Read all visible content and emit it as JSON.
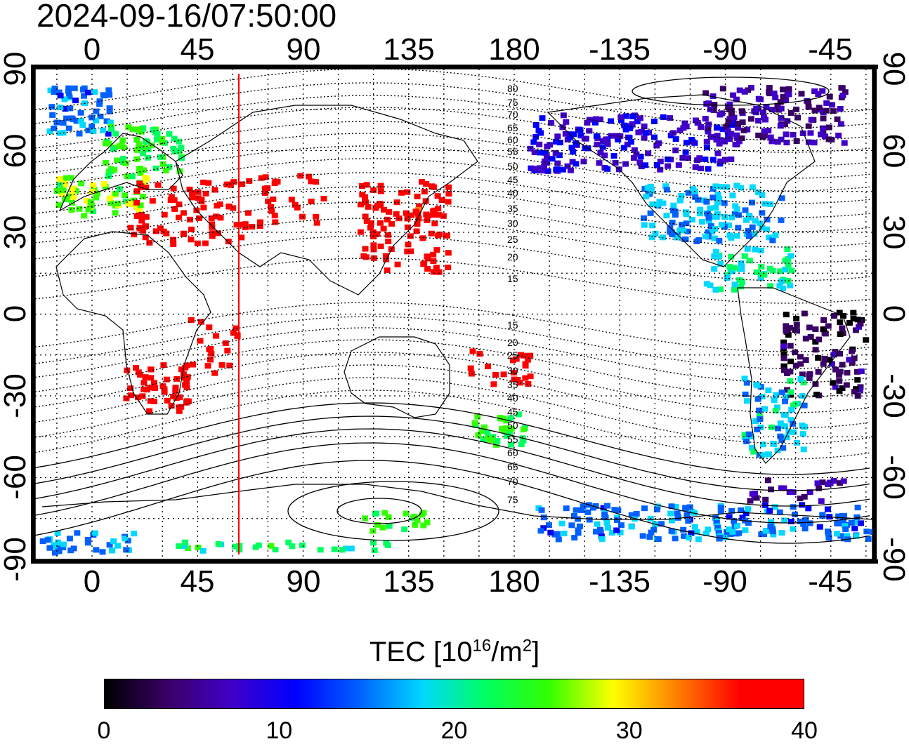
{
  "timestamp": "2024-09-16/07:50:00",
  "top_axis_labels": [
    "0",
    "45",
    "90",
    "135",
    "180",
    "-135",
    "-90",
    "-45"
  ],
  "bottom_axis_labels": [
    "0",
    "45",
    "90",
    "135",
    "180",
    "-135",
    "-90",
    "-45"
  ],
  "left_axis_labels": [
    "90",
    "60",
    "30",
    "0",
    "-30",
    "-60",
    "-90"
  ],
  "right_axis_labels": [
    "90",
    "60",
    "30",
    "0",
    "-30",
    "-60",
    "-90"
  ],
  "contour_labels_north": [
    "80",
    "75",
    "70",
    "65",
    "60",
    "55",
    "50",
    "45",
    "40",
    "35",
    "30",
    "25",
    "20",
    "15"
  ],
  "contour_labels_south": [
    "15",
    "20",
    "25",
    "30",
    "35",
    "40",
    "45",
    "50",
    "55",
    "60",
    "65",
    "70",
    "75"
  ],
  "colorbar": {
    "title_prefix": "TEC  [10",
    "title_exp1": "16",
    "title_mid": "/m",
    "title_exp2": "2",
    "title_suffix": "]",
    "tick_labels": [
      "0",
      "10",
      "20",
      "30",
      "40"
    ],
    "min": 0,
    "max": 40,
    "colors": [
      "#000000",
      "#3a0066",
      "#4000c8",
      "#0000ff",
      "#0060ff",
      "#00d8ff",
      "#00ff60",
      "#33ff00",
      "#ffff00",
      "#ff8000",
      "#ff0000",
      "#ff0000"
    ]
  },
  "colors": {
    "terminator_line": "#ff0000",
    "grid": "#000000",
    "coastline": "#000000"
  }
}
